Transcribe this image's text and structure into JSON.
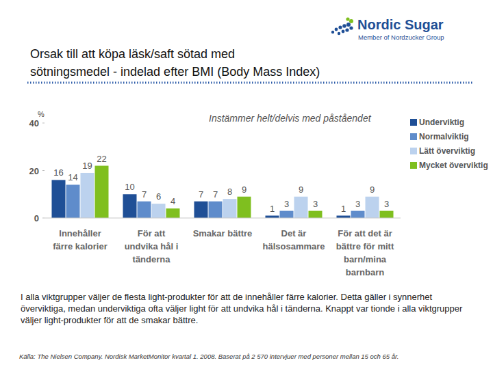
{
  "logo": {
    "name": "Nordic Sugar",
    "tagline": "Member of Nordzucker Group"
  },
  "chart_data": {
    "type": "bar",
    "title": "Orsak till att köpa läsk/saft sötad med\nsötningsmedel - indelad efter BMI (Body Mass Index)",
    "subtitle": "Instämmer helt/delvis med påståendet",
    "y_label": "%",
    "categories": [
      "Innehåller färre kalorier",
      "För att undvika hål i tänderna",
      "Smakar bättre",
      "Det är hälsosammare",
      "För att det är bättre för mitt barn/mina barnbarn"
    ],
    "series": [
      {
        "name": "Underviktig",
        "color": "#1f4f96",
        "values": [
          16,
          10,
          7,
          1,
          1
        ]
      },
      {
        "name": "Normalviktig",
        "color": "#5f8ccb",
        "values": [
          14,
          7,
          7,
          3,
          3
        ]
      },
      {
        "name": "Lätt överviktig",
        "color": "#bcd2ee",
        "values": [
          19,
          6,
          8,
          9,
          9
        ]
      },
      {
        "name": "Mycket överviktig",
        "color": "#7fbf1f",
        "values": [
          22,
          4,
          9,
          3,
          3
        ]
      }
    ],
    "ylim": [
      0,
      40
    ],
    "yticks": [
      0,
      20,
      40
    ],
    "grid": false,
    "legend": "right",
    "data_labels": true
  },
  "body_text": "I alla viktgrupper väljer de flesta light-produkter för att de innehåller färre kalorier. Detta gäller i synnerhet överviktiga, medan underviktiga ofta väljer light för att undvika hål i tänderna. Knappt var tionde i alla viktgrupper väljer light-produkter för att de smakar bättre.",
  "source": "Källa: The Nielsen Company. Nordisk MarketMonitor kvartal 1. 2008. Baserat på 2 570 intervjuer med personer mellan 15 och 65 år."
}
